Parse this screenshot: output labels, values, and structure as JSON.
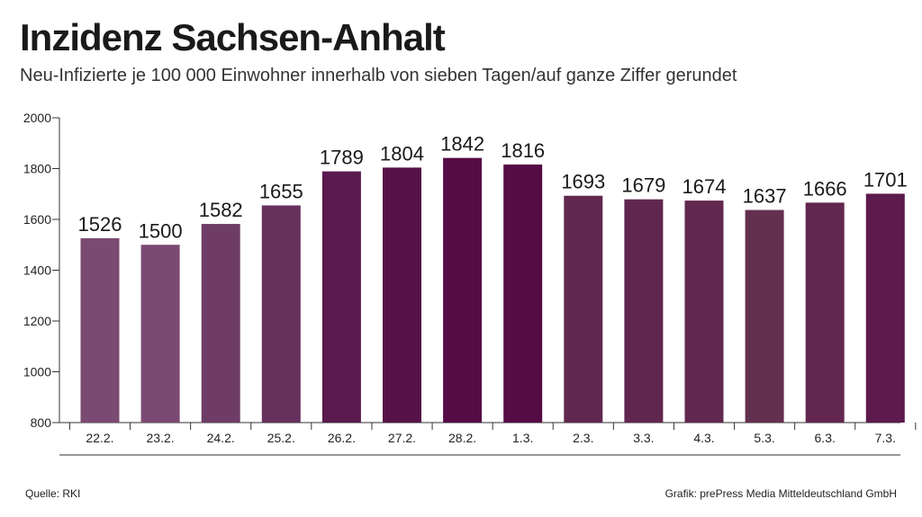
{
  "title": "Inzidenz Sachsen-Anhalt",
  "subtitle": "Neu-Infizierte je 100 000 Einwohner innerhalb von sieben Tagen/auf ganze Ziffer gerundet",
  "source": "Quelle: RKI",
  "credit": "Grafik: prePress Media Mitteldeutschland GmbH",
  "chart_data": {
    "type": "bar",
    "categories": [
      "22.2.",
      "23.2.",
      "24.2.",
      "25.2.",
      "26.2.",
      "27.2.",
      "28.2.",
      "1.3.",
      "2.3.",
      "3.3.",
      "4.3.",
      "5.3.",
      "6.3.",
      "7.3."
    ],
    "values": [
      1526,
      1500,
      1582,
      1655,
      1789,
      1804,
      1842,
      1816,
      1693,
      1679,
      1674,
      1637,
      1666,
      1701
    ],
    "ylim": [
      800,
      2000
    ],
    "yticks": [
      800,
      1000,
      1200,
      1400,
      1600,
      1800,
      2000
    ],
    "colors": [
      "#7a4a72",
      "#7a4a72",
      "#6e3c66",
      "#66305d",
      "#5a1a4e",
      "#561247",
      "#550c45",
      "#550c45",
      "#61284f",
      "#61264f",
      "#62284f",
      "#64304f",
      "#62264f",
      "#5c1a4d"
    ],
    "grid": false,
    "xlabel": "",
    "ylabel": ""
  }
}
